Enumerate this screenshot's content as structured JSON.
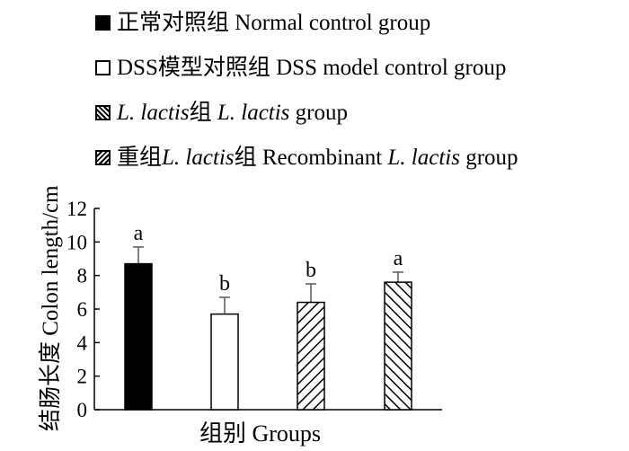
{
  "legend": [
    {
      "pre": "正常对照组 Normal control group",
      "ital": "",
      "post": "",
      "ital2": "",
      "post2": "",
      "fill": "solid"
    },
    {
      "pre": "DSS模型对照组 DSS model control group",
      "ital": "",
      "post": "",
      "ital2": "",
      "post2": "",
      "fill": "white"
    },
    {
      "pre": "",
      "ital": "L. lactis",
      "post": "组  ",
      "ital2": "L. lactis",
      "post2": " group",
      "fill": "backslash"
    },
    {
      "pre": "重组",
      "ital": "L. lactis",
      "post": "组 Recombinant ",
      "ital2": "L. lactis",
      "post2": " group",
      "fill": "slash"
    }
  ],
  "chart_data": {
    "type": "bar",
    "categories": [
      "正常对照组 Normal control group",
      "DSS模型对照组 DSS model control group",
      "L. lactis组 L. lactis group",
      "重组L. lactis组 Recombinant L. lactis group"
    ],
    "values": [
      8.7,
      5.7,
      6.4,
      7.6
    ],
    "errors": [
      1.0,
      1.0,
      1.1,
      0.6
    ],
    "significance_labels": [
      "a",
      "b",
      "b",
      "a"
    ],
    "fills": [
      "solid",
      "white",
      "backslash",
      "slash"
    ],
    "ylabel": "结肠长度 Colon length/cm",
    "xlabel": "组别 Groups",
    "ylim": [
      0,
      12
    ],
    "yticks": [
      0,
      2,
      4,
      6,
      8,
      10,
      12
    ],
    "grid": false
  }
}
